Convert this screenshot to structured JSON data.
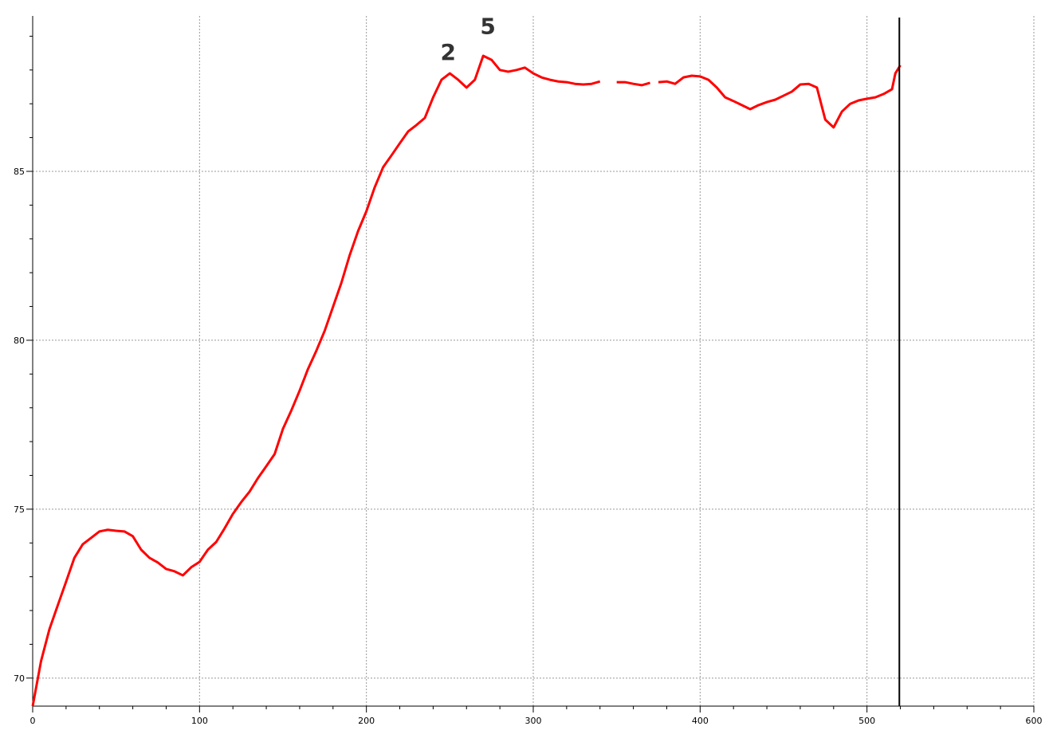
{
  "chart_data": {
    "type": "line",
    "x": [
      0,
      5,
      10,
      15,
      20,
      25,
      30,
      35,
      40,
      45,
      50,
      55,
      60,
      65,
      70,
      75,
      80,
      85,
      90,
      95,
      100,
      105,
      110,
      115,
      120,
      125,
      130,
      135,
      140,
      145,
      150,
      155,
      160,
      165,
      170,
      175,
      180,
      185,
      190,
      195,
      200,
      205,
      210,
      215,
      220,
      225,
      230,
      235,
      240,
      245,
      250,
      255,
      260,
      265,
      270,
      275,
      280,
      285,
      290,
      295,
      300,
      305,
      310,
      315,
      320,
      325,
      330,
      335,
      340,
      345,
      350,
      355,
      360,
      365,
      370,
      373,
      375,
      380,
      385,
      390,
      395,
      400,
      405,
      410,
      415,
      420,
      425,
      430,
      435,
      440,
      445,
      450,
      455,
      460,
      465,
      470,
      475,
      480,
      485,
      490,
      495,
      500,
      505,
      510,
      515,
      517,
      520
    ],
    "series": [
      {
        "color": "#ff0000",
        "values": [
          69.17,
          70.5,
          71.44,
          72.15,
          72.85,
          73.56,
          73.96,
          74.15,
          74.34,
          74.39,
          74.36,
          74.34,
          74.2,
          73.8,
          73.56,
          73.42,
          73.23,
          73.16,
          73.04,
          73.28,
          73.44,
          73.8,
          74.03,
          74.43,
          74.86,
          75.21,
          75.52,
          75.92,
          76.27,
          76.63,
          77.38,
          77.92,
          78.51,
          79.15,
          79.69,
          80.28,
          80.99,
          81.7,
          82.52,
          83.23,
          83.82,
          84.53,
          85.12,
          85.47,
          85.83,
          86.18,
          86.37,
          86.58,
          87.19,
          87.71,
          87.9,
          87.71,
          87.48,
          87.71,
          88.42,
          88.3,
          88.0,
          87.95,
          88.0,
          88.07,
          87.9,
          87.78,
          87.71,
          87.66,
          87.64,
          87.59,
          87.57,
          87.59,
          87.66,
          null,
          87.64,
          87.64,
          87.59,
          87.55,
          87.62,
          null,
          87.64,
          87.66,
          87.59,
          87.78,
          87.83,
          87.81,
          87.71,
          87.48,
          87.19,
          87.08,
          86.96,
          86.84,
          86.96,
          87.05,
          87.12,
          87.24,
          87.36,
          87.57,
          87.59,
          87.48,
          86.53,
          86.3,
          86.77,
          87.0,
          87.1,
          87.15,
          87.19,
          87.29,
          87.43,
          87.9,
          88.14
        ]
      }
    ],
    "xlim": [
      0,
      600
    ],
    "ylim": [
      69.17,
      89.6
    ],
    "xticks": [
      0,
      100,
      200,
      300,
      400,
      500,
      600
    ],
    "yticks": [
      70,
      75,
      80,
      85
    ],
    "xticks_minor": [
      20,
      40,
      60,
      80,
      120,
      140,
      160,
      180,
      220,
      240,
      260,
      280,
      320,
      340,
      360,
      380,
      420,
      440,
      460,
      480,
      520,
      540,
      560,
      580
    ],
    "yticks_minor": [
      71,
      72,
      73,
      74,
      76,
      77,
      78,
      79,
      81,
      82,
      83,
      84,
      86,
      87,
      88,
      89
    ],
    "grid": true,
    "cursor_x": 519.4,
    "annotations": [
      {
        "text": "2",
        "x": 249,
        "y": 88.54
      },
      {
        "text": "5",
        "x": 272.8,
        "y": 89.3
      }
    ]
  }
}
